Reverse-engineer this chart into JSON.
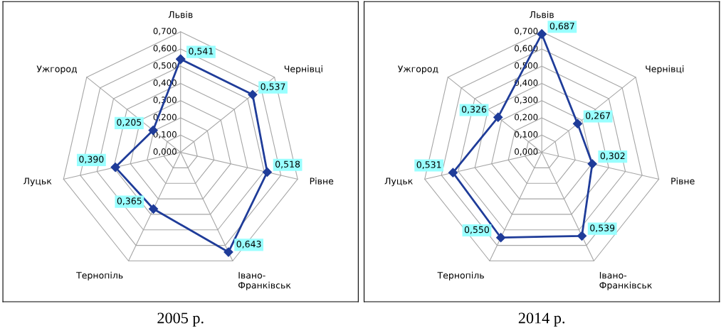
{
  "chart_data": [
    {
      "type": "radar",
      "title": "2005 р.",
      "categories": [
        "Львів",
        "Чернівці",
        "Рівне",
        "Івано-Франківськ",
        "Тернопіль",
        "Луцьк",
        "Ужгород"
      ],
      "series": [
        {
          "color": "#1f3c99",
          "values": [
            0.541,
            0.537,
            0.518,
            0.643,
            0.365,
            0.39,
            0.205
          ],
          "value_labels": [
            "0,541",
            "0,537",
            "0,518",
            "0,643",
            "0,365",
            "0,390",
            "0,205"
          ]
        }
      ],
      "ylim": [
        0,
        0.7
      ],
      "yticks": [
        {
          "value": 0,
          "label": "0,000"
        },
        {
          "value": 0.1,
          "label": "0,100"
        },
        {
          "value": 0.2,
          "label": "0,200"
        },
        {
          "value": 0.3,
          "label": "0,300"
        },
        {
          "value": 0.4,
          "label": "0,400"
        },
        {
          "value": 0.5,
          "label": "0,500"
        },
        {
          "value": 0.6,
          "label": "0,600"
        },
        {
          "value": 0.7,
          "label": "0,700"
        }
      ],
      "grid": true,
      "marker": "diamond",
      "line_style": "solid"
    },
    {
      "type": "radar",
      "title": "2014 р.",
      "categories": [
        "Львів",
        "Чернівці",
        "Рівне",
        "Івано-Франківськ",
        "Тернопіль",
        "Луцьк",
        "Ужгород"
      ],
      "series": [
        {
          "color": "#1f3c99",
          "values": [
            0.687,
            0.267,
            0.302,
            0.539,
            0.55,
            0.531,
            0.326
          ],
          "value_labels": [
            "0,687",
            "0,267",
            "0,302",
            "0,539",
            "0,550",
            "0,531",
            "0,326"
          ]
        }
      ],
      "ylim": [
        0,
        0.7
      ],
      "yticks": [
        {
          "value": 0,
          "label": "0,000"
        },
        {
          "value": 0.1,
          "label": "0,100"
        },
        {
          "value": 0.2,
          "label": "0,200"
        },
        {
          "value": 0.3,
          "label": "0,300"
        },
        {
          "value": 0.4,
          "label": "0,400"
        },
        {
          "value": 0.5,
          "label": "0,500"
        },
        {
          "value": 0.6,
          "label": "0,600"
        },
        {
          "value": 0.7,
          "label": "0,700"
        }
      ],
      "grid": true,
      "marker": "diamond",
      "line_style": "solid"
    }
  ]
}
